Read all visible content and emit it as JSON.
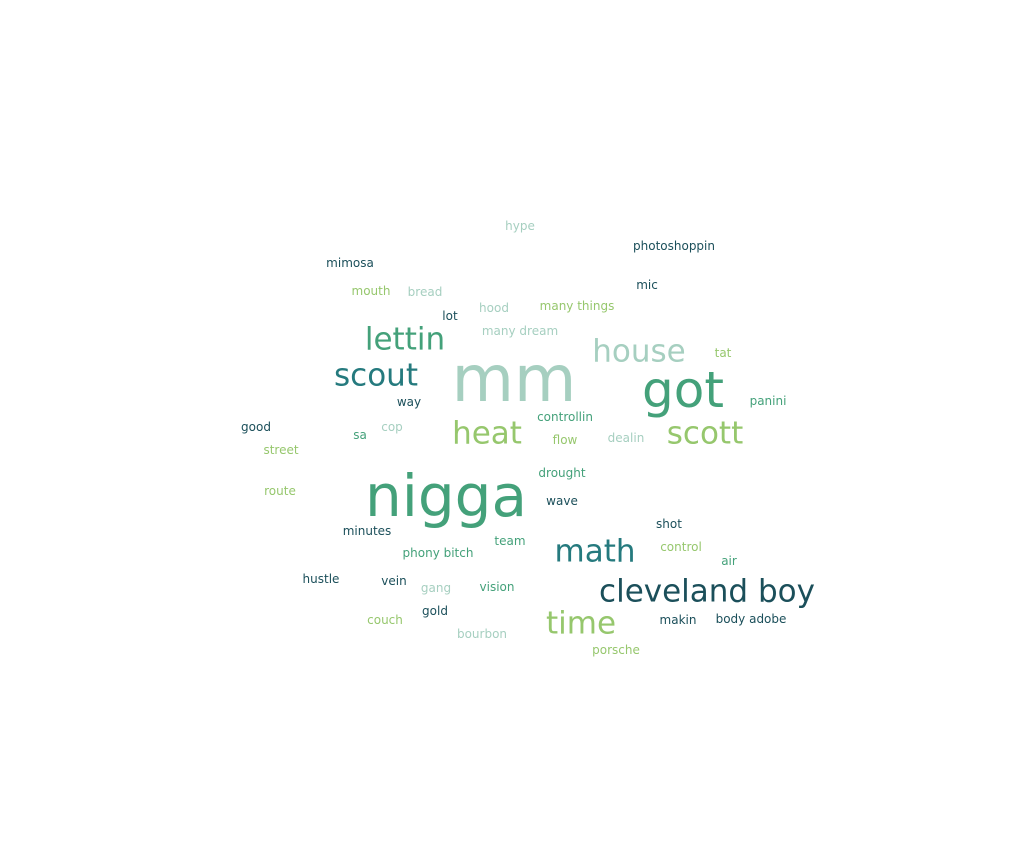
{
  "colors": {
    "dark_teal": "#1b4f5a",
    "teal": "#257a7e",
    "green": "#44a17a",
    "light_teal": "#a6cfc0",
    "lime": "#96c76d"
  },
  "words": [
    {
      "text": "mm",
      "color": "light_teal"
    },
    {
      "text": "nigga",
      "color": "green"
    },
    {
      "text": "got",
      "color": "green"
    },
    {
      "text": "cleveland boy",
      "color": "dark_teal"
    },
    {
      "text": "house",
      "color": "light_teal"
    },
    {
      "text": "lettin",
      "color": "green"
    },
    {
      "text": "scout",
      "color": "teal"
    },
    {
      "text": "heat",
      "color": "lime"
    },
    {
      "text": "scott",
      "color": "lime"
    },
    {
      "text": "math",
      "color": "teal"
    },
    {
      "text": "time",
      "color": "lime"
    },
    {
      "text": "hype",
      "color": "light_teal"
    },
    {
      "text": "photoshoppin",
      "color": "dark_teal"
    },
    {
      "text": "mimosa",
      "color": "dark_teal"
    },
    {
      "text": "mic",
      "color": "dark_teal"
    },
    {
      "text": "mouth",
      "color": "lime"
    },
    {
      "text": "bread",
      "color": "light_teal"
    },
    {
      "text": "hood",
      "color": "light_teal"
    },
    {
      "text": "many things",
      "color": "lime"
    },
    {
      "text": "lot",
      "color": "dark_teal"
    },
    {
      "text": "many dream",
      "color": "light_teal"
    },
    {
      "text": "tat",
      "color": "lime"
    },
    {
      "text": "way",
      "color": "dark_teal"
    },
    {
      "text": "panini",
      "color": "green"
    },
    {
      "text": "controllin",
      "color": "green"
    },
    {
      "text": "good",
      "color": "dark_teal"
    },
    {
      "text": "cop",
      "color": "light_teal"
    },
    {
      "text": "sa",
      "color": "green"
    },
    {
      "text": "flow",
      "color": "lime"
    },
    {
      "text": "dealin",
      "color": "light_teal"
    },
    {
      "text": "street",
      "color": "lime"
    },
    {
      "text": "drought",
      "color": "green"
    },
    {
      "text": "route",
      "color": "lime"
    },
    {
      "text": "wave",
      "color": "dark_teal"
    },
    {
      "text": "shot",
      "color": "dark_teal"
    },
    {
      "text": "minutes",
      "color": "dark_teal"
    },
    {
      "text": "team",
      "color": "green"
    },
    {
      "text": "phony bitch",
      "color": "green"
    },
    {
      "text": "control",
      "color": "lime"
    },
    {
      "text": "air",
      "color": "green"
    },
    {
      "text": "hustle",
      "color": "dark_teal"
    },
    {
      "text": "vein",
      "color": "dark_teal"
    },
    {
      "text": "gang",
      "color": "light_teal"
    },
    {
      "text": "vision",
      "color": "green"
    },
    {
      "text": "gold",
      "color": "dark_teal"
    },
    {
      "text": "couch",
      "color": "lime"
    },
    {
      "text": "makin",
      "color": "dark_teal"
    },
    {
      "text": "body adobe",
      "color": "dark_teal"
    },
    {
      "text": "bourbon",
      "color": "light_teal"
    },
    {
      "text": "porsche",
      "color": "lime"
    }
  ]
}
